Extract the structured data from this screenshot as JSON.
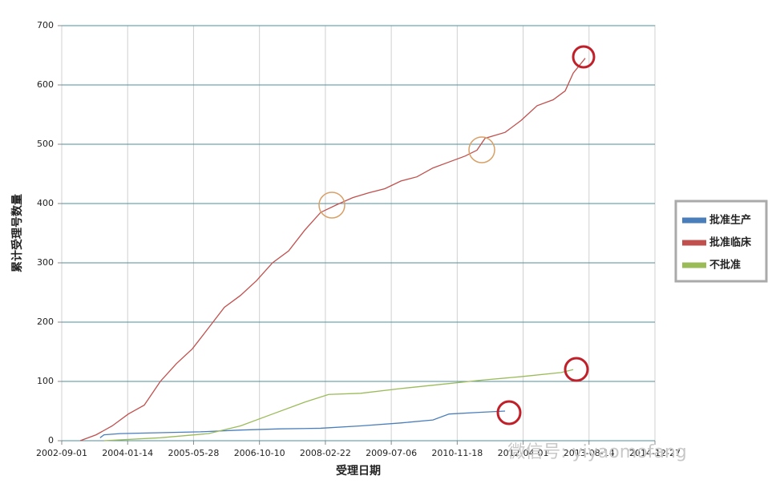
{
  "chart_data": {
    "type": "line",
    "x_title": "受理日期",
    "y_title": "累计受理号数量",
    "watermark": "微信号: yiyaomofang",
    "xlim": [
      "2002-09-01",
      "2014-12-27"
    ],
    "xticks": [
      "2002-09-01",
      "2004-01-14",
      "2005-05-28",
      "2006-10-10",
      "2008-02-22",
      "2009-07-06",
      "2010-11-18",
      "2012-04-01",
      "2013-08-14",
      "2014-12-27"
    ],
    "ylim": [
      0,
      700
    ],
    "yticks": [
      0,
      100,
      200,
      300,
      400,
      500,
      600,
      700
    ],
    "grid": true,
    "legend": "right",
    "series": [
      {
        "name": "批准生产",
        "color": "#4a7ebb",
        "x": [
          "2003-06-19",
          "2003-07-19",
          "2003-11-18",
          "2005-07-19",
          "2006-05-19",
          "2007-03-19",
          "2008-01-17",
          "2008-11-16",
          "2009-09-17",
          "2010-05-18",
          "2010-09-17",
          "2011-05-17",
          "2011-11-16"
        ],
        "values": [
          5,
          10,
          12,
          15,
          18,
          20,
          21,
          25,
          30,
          35,
          45,
          48,
          50
        ]
      },
      {
        "name": "批准临床",
        "color": "#c0504d",
        "x": [
          "2003-01-19",
          "2003-05-20",
          "2003-09-19",
          "2004-01-19",
          "2004-05-19",
          "2004-09-18",
          "2005-01-18",
          "2005-05-19",
          "2005-09-18",
          "2006-01-17",
          "2006-05-19",
          "2006-09-18",
          "2007-01-17",
          "2007-05-19",
          "2007-09-18",
          "2008-01-17",
          "2008-05-18",
          "2008-09-17",
          "2009-01-16",
          "2009-05-18",
          "2009-09-17",
          "2010-01-16",
          "2010-05-18",
          "2010-09-17",
          "2011-01-16",
          "2011-04-17",
          "2011-06-17",
          "2011-11-16",
          "2012-03-16",
          "2012-07-16",
          "2012-11-15",
          "2013-02-14",
          "2013-04-16",
          "2013-07-16"
        ],
        "values": [
          0,
          10,
          25,
          45,
          60,
          100,
          130,
          155,
          190,
          225,
          245,
          270,
          300,
          320,
          355,
          385,
          398,
          410,
          418,
          425,
          438,
          445,
          460,
          470,
          480,
          490,
          510,
          520,
          540,
          565,
          575,
          590,
          620,
          645
        ]
      },
      {
        "name": "不批准",
        "color": "#9bbb59",
        "x": [
          "2003-07-19",
          "2004-09-18",
          "2005-09-18",
          "2006-05-19",
          "2007-01-17",
          "2007-09-18",
          "2008-03-18",
          "2008-11-16",
          "2009-09-17",
          "2010-07-18",
          "2011-05-17",
          "2012-03-16",
          "2013-01-15",
          "2013-04-16"
        ],
        "values": [
          0,
          5,
          12,
          25,
          45,
          65,
          78,
          80,
          88,
          95,
          102,
          108,
          115,
          120
        ]
      }
    ]
  }
}
